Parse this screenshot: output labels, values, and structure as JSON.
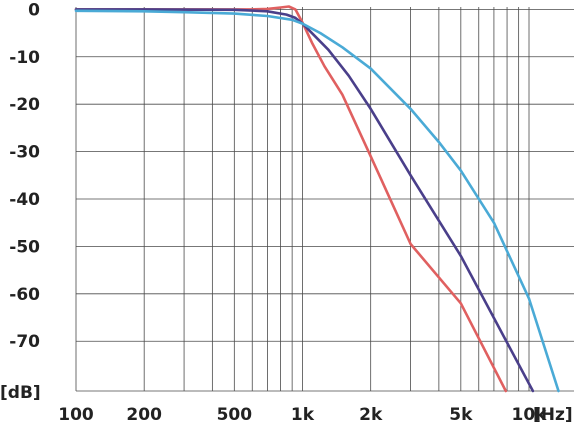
{
  "chart_data": {
    "type": "line",
    "title": "",
    "xlabel": "",
    "ylabel": "",
    "x_unit": "[Hz]",
    "y_unit": "[dB]",
    "x_scale": "log",
    "xlim": [
      100,
      15800
    ],
    "ylim": [
      -80.5,
      0.5
    ],
    "grid": true,
    "x_ticks": [
      {
        "value": 100,
        "label": "100"
      },
      {
        "value": 200,
        "label": "200"
      },
      {
        "value": 500,
        "label": "500"
      },
      {
        "value": 1000,
        "label": "1k"
      },
      {
        "value": 2000,
        "label": "2k"
      },
      {
        "value": 5000,
        "label": "5k"
      },
      {
        "value": 10000,
        "label": "10k"
      }
    ],
    "y_ticks": [
      {
        "value": 0,
        "label": "0"
      },
      {
        "value": -10,
        "label": "-10"
      },
      {
        "value": -20,
        "label": "-20"
      },
      {
        "value": -30,
        "label": "-30"
      },
      {
        "value": -40,
        "label": "-40"
      },
      {
        "value": -50,
        "label": "-50"
      },
      {
        "value": -60,
        "label": "-60"
      },
      {
        "value": -70,
        "label": "-70"
      }
    ],
    "series": [
      {
        "color": "#e06060",
        "x": [
          100,
          200,
          400,
          600,
          700,
          800,
          870,
          930,
          1000,
          1100,
          1250,
          1500,
          2000,
          3000,
          5000,
          7900
        ],
        "y": [
          0,
          0,
          0,
          0,
          0.1,
          0.4,
          0.6,
          0,
          -2.8,
          -7,
          -12,
          -18,
          -31,
          -49.5,
          -62,
          -80.5
        ]
      },
      {
        "color": "#4a3f8a",
        "x": [
          100,
          200,
          500,
          700,
          850,
          930,
          1000,
          1100,
          1300,
          1600,
          2000,
          3000,
          5000,
          10400
        ],
        "y": [
          0,
          0,
          -0.1,
          -0.4,
          -1.1,
          -1.8,
          -3,
          -5,
          -8.5,
          -14,
          -21,
          -35,
          -52,
          -80.5
        ]
      },
      {
        "color": "#4aaad6",
        "x": [
          100,
          200,
          300,
          500,
          700,
          900,
          1000,
          1200,
          1500,
          2000,
          3000,
          4000,
          5000,
          7000,
          10000,
          13500
        ],
        "y": [
          -0.3,
          -0.4,
          -0.6,
          -0.9,
          -1.4,
          -2.2,
          -3,
          -5,
          -8,
          -12.5,
          -21,
          -28,
          -34,
          -45,
          -61,
          -80.5
        ]
      }
    ]
  }
}
